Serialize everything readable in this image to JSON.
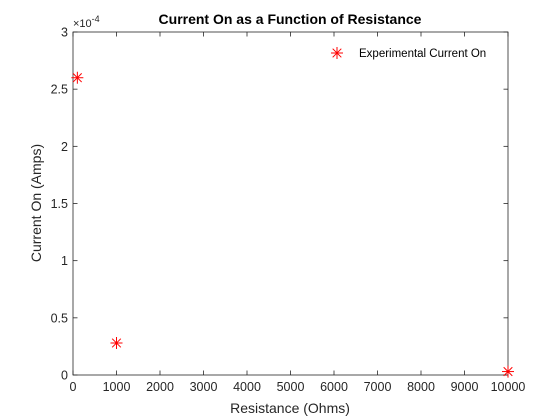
{
  "chart_data": {
    "type": "scatter",
    "title": "Current On as a Function of Resistance",
    "xlabel": "Resistance (Ohms)",
    "ylabel": "Current On (Amps)",
    "xlim": [
      0,
      10000
    ],
    "ylim": [
      0,
      3
    ],
    "y_exponent_label": "×10",
    "y_exponent_power": "-4",
    "x_ticks": [
      0,
      1000,
      2000,
      3000,
      4000,
      5000,
      6000,
      7000,
      8000,
      9000,
      10000
    ],
    "y_ticks": [
      0,
      0.5,
      1,
      1.5,
      2,
      2.5,
      3
    ],
    "y_tick_labels": [
      "0",
      "0.5",
      "1",
      "1.5",
      "2",
      "2.5",
      "3"
    ],
    "grid": false,
    "legend_position": "top-right",
    "series": [
      {
        "name": "Experimental Current On",
        "marker": "asterisk",
        "color": "#ff0000",
        "x": [
          100,
          1000,
          10000
        ],
        "y": [
          2.6,
          0.28,
          0.03
        ]
      }
    ]
  }
}
